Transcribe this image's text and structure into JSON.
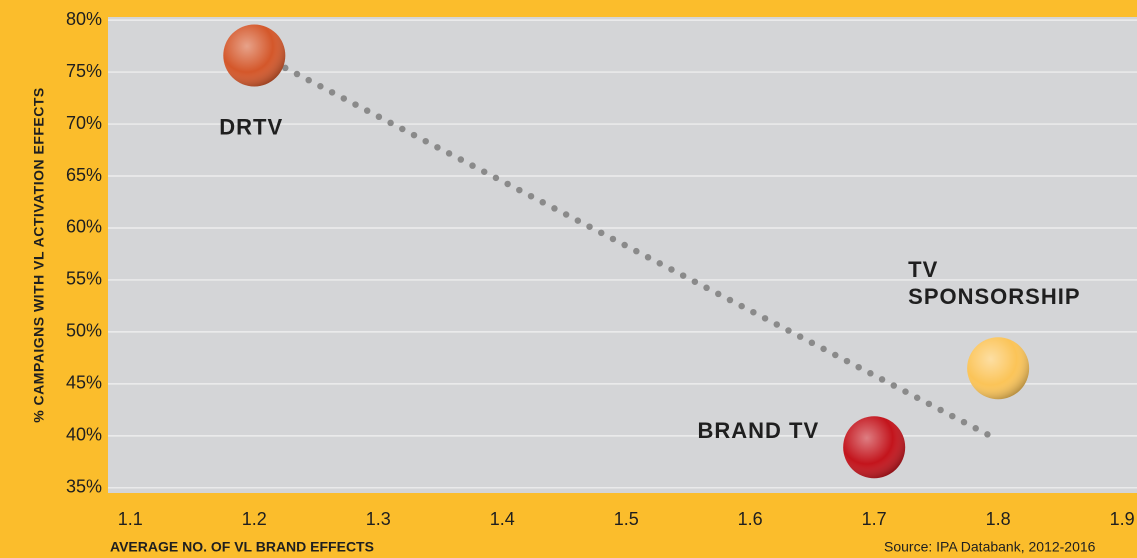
{
  "chart_data": {
    "type": "scatter",
    "x_label": "AVERAGE NO. OF VL BRAND EFFECTS",
    "y_label": "% CAMPAIGNS WITH VL ACTIVATION EFFECTS",
    "source": "Source: IPA Databank, 2012-2016",
    "xlim": [
      1.082,
      1.912
    ],
    "ylim": [
      34.5,
      80.3
    ],
    "xticks": [
      1.1,
      1.2,
      1.3,
      1.4,
      1.5,
      1.6,
      1.7,
      1.8,
      1.9
    ],
    "yticks": [
      {
        "value": 35,
        "label": "35%"
      },
      {
        "value": 40,
        "label": "40%"
      },
      {
        "value": 45,
        "label": "45%"
      },
      {
        "value": 50,
        "label": "50%"
      },
      {
        "value": 55,
        "label": "55%"
      },
      {
        "value": 60,
        "label": "60%"
      },
      {
        "value": 65,
        "label": "65%"
      },
      {
        "value": 70,
        "label": "70%"
      },
      {
        "value": 75,
        "label": "75%"
      },
      {
        "value": 80,
        "label": "80%"
      }
    ],
    "grid": true,
    "points": [
      {
        "label_lines": [
          "DRTV"
        ],
        "x": 1.2,
        "y": 76.6,
        "color": "#d4572a"
      },
      {
        "label_lines": [
          "BRAND TV"
        ],
        "x": 1.7,
        "y": 38.9,
        "color": "#c3141c"
      },
      {
        "label_lines": [
          "TV",
          "SPONSORSHIP"
        ],
        "x": 1.8,
        "y": 46.5,
        "color": "#fbc458"
      }
    ],
    "trendline": {
      "x": [
        1.225,
        1.8
      ],
      "y": [
        75.4,
        39.6
      ],
      "color": "#8a8a8a"
    }
  }
}
